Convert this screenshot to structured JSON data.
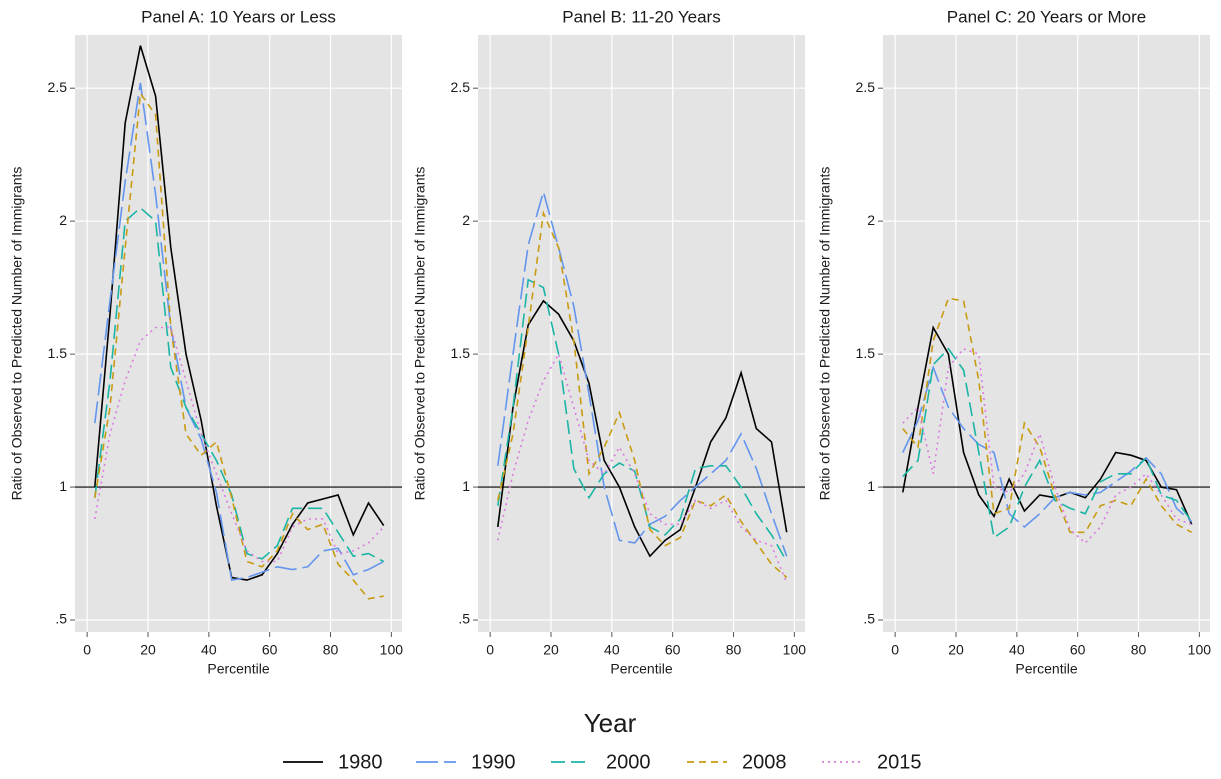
{
  "chart_data": [
    {
      "type": "line",
      "title": "Panel A: 10 Years or Less",
      "x_label": "Percentile",
      "y_label": "Ratio of Observed to Predicted Number of Immigrants",
      "legend_title": "Year",
      "legend": "bottom",
      "grid": true,
      "hline": 1,
      "x": [
        2.5,
        7.5,
        12.5,
        17.5,
        22.5,
        27.5,
        32.5,
        37.5,
        42.5,
        47.5,
        52.5,
        57.5,
        62.5,
        67.5,
        72.5,
        77.5,
        82.5,
        87.5,
        92.5,
        97.5
      ],
      "xlim": [
        -4,
        103.5
      ],
      "ylim": [
        0.455,
        2.7
      ],
      "xticks": [
        0,
        20,
        40,
        60,
        80,
        100
      ],
      "yticks": [
        {
          "value": 0.5,
          "label": ".5"
        },
        1,
        1.5,
        2,
        2.5
      ],
      "series": [
        {
          "name": "1980",
          "color": "#000000",
          "values": [
            1.0,
            1.65,
            2.37,
            2.66,
            2.47,
            1.9,
            1.5,
            1.25,
            0.93,
            0.66,
            0.65,
            0.67,
            0.75,
            0.86,
            0.94,
            0.955,
            0.97,
            0.82,
            0.94,
            0.855
          ]
        },
        {
          "name": "1990",
          "color": "#6495ed",
          "values": [
            1.24,
            1.7,
            2.15,
            2.52,
            2.1,
            1.6,
            1.3,
            1.18,
            0.98,
            0.65,
            0.66,
            0.68,
            0.7,
            0.69,
            0.7,
            0.76,
            0.77,
            0.67,
            0.69,
            0.72
          ]
        },
        {
          "name": "2000",
          "color": "#1ab5a5",
          "values": [
            0.96,
            1.4,
            2.0,
            2.05,
            2.0,
            1.45,
            1.3,
            1.2,
            1.1,
            0.97,
            0.75,
            0.73,
            0.78,
            0.92,
            0.92,
            0.92,
            0.83,
            0.74,
            0.75,
            0.72
          ]
        },
        {
          "name": "2008",
          "color": "#c89b12",
          "values": [
            0.96,
            1.3,
            1.9,
            2.48,
            2.4,
            1.6,
            1.2,
            1.12,
            1.17,
            0.96,
            0.72,
            0.7,
            0.76,
            0.9,
            0.84,
            0.86,
            0.71,
            0.65,
            0.58,
            0.59
          ]
        },
        {
          "name": "2015",
          "color": "#d97be0",
          "values": [
            0.88,
            1.2,
            1.4,
            1.55,
            1.6,
            1.6,
            1.4,
            1.2,
            1.05,
            0.9,
            0.76,
            0.72,
            0.72,
            0.85,
            0.88,
            0.88,
            0.75,
            0.76,
            0.79,
            0.85
          ]
        }
      ]
    },
    {
      "type": "line",
      "title": "Panel B: 11-20 Years",
      "x_label": "Percentile",
      "y_label": "Ratio of Observed to Predicted Number of Immigrants",
      "grid": true,
      "hline": 1,
      "x": [
        2.5,
        7.5,
        12.5,
        17.5,
        22.5,
        27.5,
        32.5,
        37.5,
        42.5,
        47.5,
        52.5,
        57.5,
        62.5,
        67.5,
        72.5,
        77.5,
        82.5,
        87.5,
        92.5,
        97.5
      ],
      "xlim": [
        -4,
        103.5
      ],
      "ylim": [
        0.455,
        2.7
      ],
      "xticks": [
        0,
        20,
        40,
        60,
        80,
        100
      ],
      "yticks": [
        {
          "value": 0.5,
          "label": ".5"
        },
        1,
        1.5,
        2,
        2.5
      ],
      "series": [
        {
          "name": "1980",
          "color": "#000000",
          "values": [
            0.85,
            1.3,
            1.61,
            1.7,
            1.65,
            1.55,
            1.39,
            1.1,
            1.0,
            0.85,
            0.74,
            0.8,
            0.84,
            1.0,
            1.17,
            1.26,
            1.43,
            1.22,
            1.17,
            0.83
          ]
        },
        {
          "name": "1990",
          "color": "#6495ed",
          "values": [
            1.08,
            1.5,
            1.91,
            2.11,
            1.9,
            1.68,
            1.35,
            1.0,
            0.8,
            0.79,
            0.86,
            0.89,
            0.95,
            1.0,
            1.05,
            1.1,
            1.2,
            1.07,
            0.9,
            0.74
          ]
        },
        {
          "name": "2000",
          "color": "#1ab5a5",
          "values": [
            0.93,
            1.3,
            1.78,
            1.75,
            1.5,
            1.07,
            0.96,
            1.05,
            1.09,
            1.06,
            0.85,
            0.82,
            0.88,
            1.07,
            1.08,
            1.08,
            1.0,
            0.9,
            0.82,
            0.72
          ]
        },
        {
          "name": "2008",
          "color": "#c89b12",
          "values": [
            0.95,
            1.2,
            1.6,
            2.03,
            1.9,
            1.55,
            1.05,
            1.15,
            1.28,
            1.1,
            0.84,
            0.78,
            0.81,
            0.95,
            0.93,
            0.97,
            0.87,
            0.79,
            0.71,
            0.66
          ]
        },
        {
          "name": "2015",
          "color": "#d97be0",
          "values": [
            0.8,
            1.05,
            1.25,
            1.4,
            1.5,
            1.3,
            1.1,
            1.05,
            1.15,
            1.05,
            0.9,
            0.86,
            0.86,
            0.95,
            0.92,
            0.95,
            0.85,
            0.8,
            0.78,
            0.64
          ]
        }
      ]
    },
    {
      "type": "line",
      "title": "Panel C: 20 Years or More",
      "x_label": "Percentile",
      "y_label": "Ratio of Observed to Predicted Number of Immigrants",
      "grid": true,
      "hline": 1,
      "x": [
        2.5,
        7.5,
        12.5,
        17.5,
        22.5,
        27.5,
        32.5,
        37.5,
        42.5,
        47.5,
        52.5,
        57.5,
        62.5,
        67.5,
        72.5,
        77.5,
        82.5,
        87.5,
        92.5,
        97.5
      ],
      "xlim": [
        -4,
        103.5
      ],
      "ylim": [
        0.455,
        2.7
      ],
      "xticks": [
        0,
        20,
        40,
        60,
        80,
        100
      ],
      "yticks": [
        {
          "value": 0.5,
          "label": ".5"
        },
        1,
        1.5,
        2,
        2.5
      ],
      "series": [
        {
          "name": "1980",
          "color": "#000000",
          "values": [
            0.98,
            1.3,
            1.6,
            1.5,
            1.13,
            0.97,
            0.89,
            1.03,
            0.91,
            0.97,
            0.96,
            0.98,
            0.96,
            1.03,
            1.13,
            1.12,
            1.1,
            1.0,
            0.99,
            0.86
          ]
        },
        {
          "name": "1990",
          "color": "#6495ed",
          "values": [
            1.13,
            1.25,
            1.45,
            1.3,
            1.22,
            1.16,
            1.13,
            0.9,
            0.85,
            0.9,
            0.96,
            0.98,
            0.97,
            0.98,
            1.02,
            1.06,
            1.11,
            1.05,
            0.92,
            0.87
          ]
        },
        {
          "name": "2000",
          "color": "#1ab5a5",
          "values": [
            1.04,
            1.1,
            1.46,
            1.52,
            1.44,
            1.13,
            0.81,
            0.85,
            1.0,
            1.1,
            0.95,
            0.92,
            0.9,
            1.02,
            1.05,
            1.05,
            1.11,
            0.97,
            0.95,
            0.87
          ]
        },
        {
          "name": "2008",
          "color": "#c89b12",
          "values": [
            1.22,
            1.15,
            1.55,
            1.71,
            1.7,
            1.4,
            0.9,
            0.92,
            1.24,
            1.15,
            0.97,
            0.83,
            0.83,
            0.93,
            0.95,
            0.93,
            1.03,
            0.93,
            0.86,
            0.83
          ]
        },
        {
          "name": "2015",
          "color": "#d97be0",
          "values": [
            1.24,
            1.3,
            1.05,
            1.45,
            1.52,
            1.5,
            1.0,
            0.98,
            1.05,
            1.2,
            1.0,
            0.84,
            0.79,
            0.85,
            0.97,
            1.0,
            1.05,
            0.97,
            0.88,
            0.86
          ]
        }
      ]
    }
  ]
}
